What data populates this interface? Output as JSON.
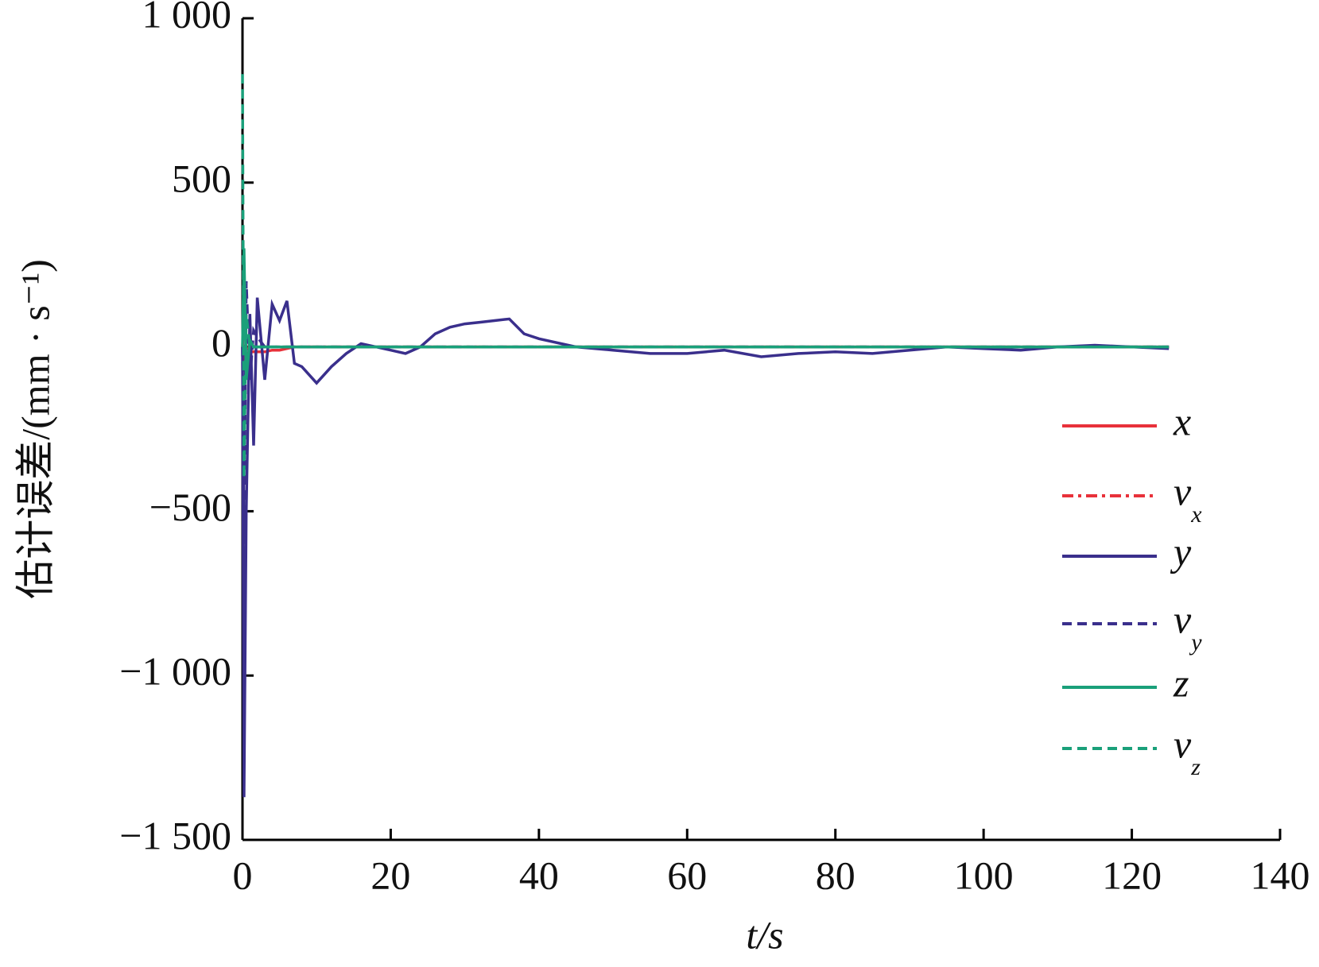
{
  "chart_data": {
    "type": "line",
    "ylabel": "估计误差/(mm · s⁻¹)",
    "xlabel": "t/s",
    "x": [
      0,
      0.2,
      0.5,
      1,
      1.5,
      2,
      3,
      4,
      5,
      6,
      7,
      8,
      10,
      12,
      14,
      16,
      18,
      20,
      22,
      24,
      26,
      28,
      30,
      32,
      34,
      36,
      38,
      40,
      45,
      50,
      55,
      60,
      65,
      70,
      75,
      80,
      85,
      90,
      95,
      100,
      105,
      110,
      115,
      120,
      125
    ],
    "series": [
      {
        "name": "x",
        "color": "#e8313a",
        "dash": "solid",
        "values": [
          0,
          -50,
          -20,
          -15,
          -15,
          -15,
          -15,
          -10,
          -10,
          -5,
          0,
          0,
          0,
          0,
          0,
          0,
          0,
          0,
          0,
          0,
          0,
          0,
          0,
          0,
          0,
          0,
          0,
          0,
          0,
          0,
          0,
          0,
          0,
          0,
          0,
          0,
          0,
          0,
          0,
          0,
          0,
          0,
          0,
          0,
          0
        ]
      },
      {
        "name": "vx",
        "color": "#e8313a",
        "dash": "dashdot",
        "values": [
          0,
          100,
          -50,
          20,
          0,
          0,
          0,
          0,
          0,
          0,
          0,
          0,
          0,
          0,
          0,
          0,
          0,
          0,
          0,
          0,
          0,
          0,
          0,
          0,
          0,
          0,
          0,
          0,
          0,
          0,
          0,
          0,
          0,
          0,
          0,
          0,
          0,
          0,
          0,
          0,
          0,
          0,
          0,
          0,
          0
        ]
      },
      {
        "name": "y",
        "color": "#3a2f8c",
        "dash": "solid",
        "values": [
          0,
          -1370,
          -500,
          100,
          -300,
          150,
          -100,
          130,
          80,
          140,
          -50,
          -60,
          -110,
          -60,
          -20,
          10,
          0,
          -10,
          -20,
          0,
          40,
          60,
          70,
          75,
          80,
          85,
          40,
          25,
          0,
          -10,
          -20,
          -20,
          -10,
          -30,
          -20,
          -15,
          -20,
          -10,
          0,
          -5,
          -10,
          0,
          5,
          0,
          -5
        ]
      },
      {
        "name": "vy",
        "color": "#3a2f8c",
        "dash": "dashed",
        "values": [
          0,
          -600,
          200,
          -100,
          50,
          30,
          0,
          0,
          0,
          0,
          0,
          0,
          0,
          0,
          0,
          0,
          0,
          0,
          0,
          0,
          0,
          0,
          0,
          0,
          0,
          0,
          0,
          0,
          0,
          0,
          0,
          0,
          0,
          0,
          0,
          0,
          0,
          0,
          0,
          0,
          0,
          0,
          0,
          0,
          0
        ]
      },
      {
        "name": "z",
        "color": "#1aa07a",
        "dash": "solid",
        "values": [
          0,
          300,
          -100,
          20,
          0,
          0,
          0,
          0,
          0,
          0,
          0,
          0,
          0,
          0,
          0,
          0,
          0,
          0,
          0,
          0,
          0,
          0,
          0,
          0,
          0,
          0,
          0,
          0,
          0,
          0,
          0,
          0,
          0,
          0,
          0,
          0,
          0,
          0,
          0,
          0,
          0,
          0,
          0,
          0,
          0
        ]
      },
      {
        "name": "vz",
        "color": "#1aa07a",
        "dash": "dashed",
        "values": [
          830,
          -400,
          100,
          0,
          0,
          0,
          0,
          0,
          0,
          0,
          0,
          0,
          0,
          0,
          0,
          0,
          0,
          0,
          0,
          0,
          0,
          0,
          0,
          0,
          0,
          0,
          0,
          0,
          0,
          0,
          0,
          0,
          0,
          0,
          0,
          0,
          0,
          0,
          0,
          0,
          0,
          0,
          0,
          0,
          0
        ]
      }
    ],
    "xlim": [
      0,
      140
    ],
    "xticks": [
      0,
      20,
      40,
      60,
      80,
      100,
      120,
      140
    ],
    "ylim": [
      -1500,
      1000
    ],
    "yticks": [
      {
        "value": -1500,
        "label": "−1 500"
      },
      {
        "value": -1000,
        "label": "−1 000"
      },
      {
        "value": -500,
        "label": "−500"
      },
      0,
      500,
      {
        "value": 1000,
        "label": "1 000"
      }
    ],
    "legend": "right"
  }
}
